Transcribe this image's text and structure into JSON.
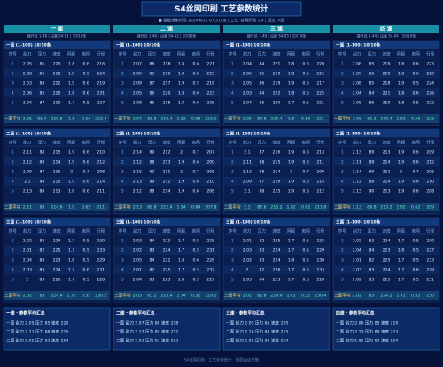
{
  "header": {
    "title": "S4丝网印刷  工艺参数统计",
    "status": "● 数据采集时间 2024/6/21 07:31:08  |  工位: 丝网印刷 1-4  |  班次: A班"
  },
  "headers": [
    "序号",
    "刮刀",
    "压力",
    "速度",
    "网距",
    "离网",
    "行程"
  ],
  "columns": [
    {
      "title": "一 速",
      "info": "操作员 1-48  |  设备 S4-01  |  10/10条",
      "sections": [
        {
          "label": "一面 (1-100) 10/10条",
          "avg_label": "一面平均",
          "rows": [
            [
              1,
              2.05,
              85,
              220,
              1.8,
              0.6,
              216
            ],
            [
              2,
              2.08,
              86,
              218,
              1.8,
              0.5,
              224
            ],
            [
              3,
              2.03,
              84,
              222,
              1.9,
              0.6,
              219
            ],
            [
              4,
              2.06,
              85,
              220,
              1.8,
              0.6,
              231
            ],
            [
              5,
              2.04,
              87,
              219,
              1.7,
              0.5,
              227
            ]
          ],
          "avg": [
            2.05,
            85.4,
            219.8,
            1.8,
            0.56,
            223.4
          ]
        },
        {
          "label": "二面 (1-100) 10/10条",
          "avg_label": "二面平均",
          "rows": [
            [
              1,
              2.11,
              88,
              215,
              1.9,
              0.6,
              210
            ],
            [
              2,
              2.12,
              89,
              214,
              1.9,
              0.6,
              212
            ],
            [
              3,
              2.09,
              87,
              216,
              2.0,
              0.7,
              208
            ],
            [
              4,
              2.1,
              88,
              215,
              1.9,
              0.6,
              214
            ],
            [
              5,
              2.13,
              88,
              213,
              1.8,
              0.6,
              211
            ]
          ],
          "avg": [
            2.11,
            88,
            214.6,
            1.9,
            0.62,
            211
          ]
        },
        {
          "label": "三面 (1-100) 10/10条",
          "avg_label": "三面平均",
          "rows": [
            [
              1,
              2.02,
              83,
              224,
              1.7,
              0.5,
              230
            ],
            [
              2,
              2.01,
              82,
              225,
              1.7,
              0.5,
              233
            ],
            [
              3,
              2.04,
              84,
              223,
              1.8,
              0.5,
              229
            ],
            [
              4,
              2.03,
              83,
              224,
              1.7,
              0.6,
              231
            ],
            [
              5,
              2,
              83,
              226,
              1.7,
              0.5,
              228
            ]
          ],
          "avg": [
            2.02,
            83,
            224.4,
            1.72,
            0.52,
            230.2
          ]
        }
      ],
      "summary": {
        "title": "一速 · 参数平均汇总",
        "lines": [
          "一面 刮刀 2.05  压力 85  速度 220",
          "二面 刮刀 2.11  压力 88  速度 215",
          "三面 刮刀 2.02  压力 83  速度 224"
        ]
      }
    },
    {
      "title": "二 速",
      "info": "操作员 1-46  |  设备 S4-02  |  10/10条",
      "sections": [
        {
          "label": "一面 (1-100) 10/10条",
          "avg_label": "一面平均",
          "rows": [
            [
              1,
              2.07,
              86,
              218,
              1.8,
              0.6,
              221
            ],
            [
              2,
              2.06,
              85,
              219,
              1.8,
              0.6,
              225
            ],
            [
              3,
              2.09,
              87,
              217,
              1.9,
              0.5,
              218
            ],
            [
              4,
              2.05,
              86,
              220,
              1.8,
              0.6,
              223
            ],
            [
              5,
              2.08,
              85,
              218,
              1.8,
              0.6,
              226
            ]
          ],
          "avg": [
            2.07,
            85.8,
            218.4,
            1.82,
            0.58,
            222.6
          ]
        },
        {
          "label": "二面 (1-100) 10/10条",
          "avg_label": "二面平均",
          "rows": [
            [
              1,
              2.14,
              89,
              212,
              2.0,
              0.7,
              207
            ],
            [
              2,
              2.12,
              88,
              213,
              1.9,
              0.6,
              209
            ],
            [
              3,
              2.15,
              90,
              211,
              2.0,
              0.7,
              205
            ],
            [
              4,
              2.13,
              89,
              212,
              1.9,
              0.6,
              210
            ],
            [
              5,
              2.12,
              88,
              214,
              1.9,
              0.6,
              208
            ]
          ],
          "avg": [
            2.13,
            88.8,
            212.4,
            1.94,
            0.64,
            207.8
          ]
        },
        {
          "label": "三面 (1-100) 10/10条",
          "avg_label": "三面平均",
          "rows": [
            [
              1,
              2.03,
              84,
              223,
              1.7,
              0.5,
              228
            ],
            [
              2,
              2.02,
              83,
              224,
              1.7,
              0.5,
              231
            ],
            [
              3,
              2.05,
              84,
              222,
              1.8,
              0.6,
              226
            ],
            [
              4,
              2.01,
              82,
              225,
              1.7,
              0.5,
              232
            ],
            [
              5,
              2.04,
              83,
              223,
              1.8,
              0.5,
              229
            ]
          ],
          "avg": [
            2.03,
            83.2,
            223.4,
            1.74,
            0.52,
            229.2
          ]
        }
      ],
      "summary": {
        "title": "二速 · 参数平均汇总",
        "lines": [
          "一面 刮刀 2.07  压力 86  速度 218",
          "二面 刮刀 2.13  压力 89  速度 212",
          "三面 刮刀 2.03  压力 83  速度 223"
        ]
      }
    },
    {
      "title": "三 速",
      "info": "操作员 1-48  |  设备 S4-03  |  10/10条",
      "sections": [
        {
          "label": "一面 (1-100) 10/10条",
          "avg_label": "一面平均",
          "rows": [
            [
              1,
              2.04,
              84,
              221,
              1.8,
              0.6,
              220
            ],
            [
              2,
              2.06,
              85,
              220,
              1.8,
              0.5,
              222
            ],
            [
              3,
              2.05,
              86,
              219,
              1.9,
              0.6,
              217
            ],
            [
              4,
              2.03,
              84,
              222,
              1.8,
              0.6,
              225
            ],
            [
              5,
              2.07,
              85,
              220,
              1.7,
              0.5,
              221
            ]
          ],
          "avg": [
            2.05,
            84.8,
            220.4,
            1.8,
            0.56,
            221
          ]
        },
        {
          "label": "二面 (1-100) 10/10条",
          "avg_label": "二面平均",
          "rows": [
            [
              1,
              2.1,
              87,
              216,
              1.9,
              0.6,
              213
            ],
            [
              2,
              2.11,
              88,
              215,
              1.9,
              0.6,
              211
            ],
            [
              3,
              2.12,
              88,
              214,
              2.0,
              0.7,
              209
            ],
            [
              4,
              2.09,
              87,
              216,
              1.9,
              0.6,
              214
            ],
            [
              5,
              2.1,
              88,
              215,
              1.9,
              0.6,
              212
            ]
          ],
          "avg": [
            2.1,
            87.6,
            215.2,
            1.92,
            0.62,
            211.8
          ]
        },
        {
          "label": "三面 (1-100) 10/10条",
          "avg_label": "三面平均",
          "rows": [
            [
              1,
              2.01,
              82,
              225,
              1.7,
              0.5,
              232
            ],
            [
              2,
              2.03,
              83,
              224,
              1.7,
              0.5,
              229
            ],
            [
              3,
              2.02,
              83,
              224,
              1.8,
              0.5,
              230
            ],
            [
              4,
              2,
              82,
              226,
              1.7,
              0.5,
              233
            ],
            [
              5,
              2.03,
              84,
              223,
              1.7,
              0.6,
              228
            ]
          ],
          "avg": [
            2.02,
            82.8,
            224.4,
            1.72,
            0.52,
            230.4
          ]
        }
      ],
      "summary": {
        "title": "三速 · 参数平均汇总",
        "lines": [
          "一面 刮刀 2.05  压力 85  速度 220",
          "二面 刮刀 2.10  压力 88  速度 215",
          "三面 刮刀 2.02  压力 83  速度 224"
        ]
      }
    },
    {
      "title": "四 速",
      "info": "操作员 1-44  |  设备 S4-04  |  10/10条",
      "sections": [
        {
          "label": "一面 (1-100) 10/10条",
          "avg_label": "一面平均",
          "rows": [
            [
              1,
              2.06,
              85,
              219,
              1.8,
              0.6,
              223
            ],
            [
              2,
              2.05,
              86,
              220,
              1.8,
              0.6,
              220
            ],
            [
              3,
              2.08,
              85,
              218,
              1.9,
              0.5,
              224
            ],
            [
              4,
              2.04,
              84,
              221,
              1.8,
              0.6,
              226
            ],
            [
              5,
              2.06,
              86,
              219,
              1.8,
              0.5,
              222
            ]
          ],
          "avg": [
            2.06,
            85.2,
            219.4,
            1.82,
            0.56,
            223
          ]
        },
        {
          "label": "二面 (1-100) 10/10条",
          "avg_label": "二面平均",
          "rows": [
            [
              1,
              2.13,
              89,
              213,
              1.9,
              0.6,
              209
            ],
            [
              2,
              2.11,
              88,
              214,
              1.9,
              0.6,
              212
            ],
            [
              3,
              2.14,
              89,
              212,
              2.0,
              0.7,
              206
            ],
            [
              4,
              2.12,
              88,
              214,
              1.9,
              0.6,
              210
            ],
            [
              5,
              2.13,
              90,
              213,
              1.9,
              0.6,
              208
            ]
          ],
          "avg": [
            2.13,
            88.8,
            213.2,
            1.92,
            0.62,
            209
          ]
        },
        {
          "label": "三面 (1-100) 10/10条",
          "avg_label": "三面平均",
          "rows": [
            [
              1,
              2.02,
              83,
              224,
              1.7,
              0.5,
              230
            ],
            [
              2,
              2.04,
              84,
              223,
              1.8,
              0.5,
              227
            ],
            [
              3,
              2.01,
              82,
              225,
              1.7,
              0.5,
              233
            ],
            [
              4,
              2.03,
              83,
              224,
              1.7,
              0.6,
              229
            ],
            [
              5,
              2.02,
              83,
              225,
              1.7,
              0.5,
              231
            ]
          ],
          "avg": [
            2.02,
            83,
            224.2,
            1.72,
            0.52,
            230
          ]
        }
      ],
      "summary": {
        "title": "四速 · 参数平均汇总",
        "lines": [
          "一面 刮刀 2.06  压力 85  速度 219",
          "二面 刮刀 2.13  压力 89  速度 213",
          "三面 刮刀 2.02  压力 83  速度 224"
        ]
      }
    }
  ],
  "footer": "S4丝网印刷 · 工艺参数统计 · 数据自动采集"
}
